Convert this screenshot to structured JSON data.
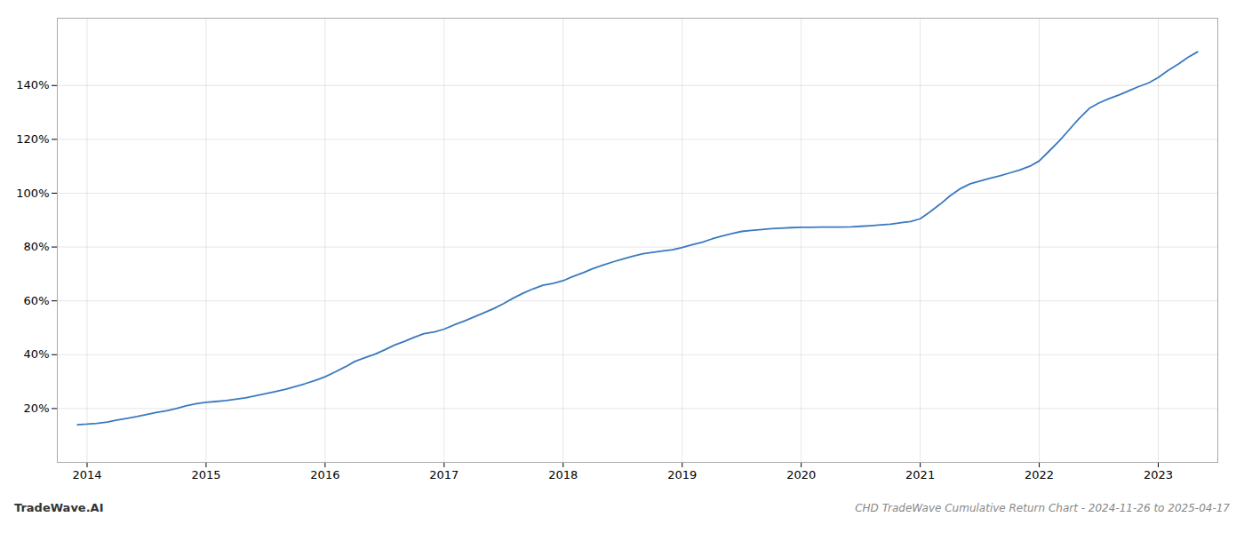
{
  "chart_data": {
    "type": "line",
    "title": "CHD TradeWave Cumulative Return Chart - 2024-11-26 to 2025-04-17",
    "annotations": [
      "TradeWave.AI"
    ],
    "color": "#3a7abf",
    "grid": true,
    "x": [
      2013.92,
      2014.0,
      2014.08,
      2014.17,
      2014.25,
      2014.33,
      2014.42,
      2014.5,
      2014.58,
      2014.67,
      2014.75,
      2014.83,
      2014.92,
      2015.0,
      2015.08,
      2015.17,
      2015.25,
      2015.33,
      2015.42,
      2015.5,
      2015.58,
      2015.67,
      2015.75,
      2015.83,
      2015.92,
      2016.0,
      2016.08,
      2016.17,
      2016.25,
      2016.33,
      2016.42,
      2016.5,
      2016.58,
      2016.67,
      2016.75,
      2016.83,
      2016.92,
      2017.0,
      2017.08,
      2017.17,
      2017.25,
      2017.33,
      2017.42,
      2017.5,
      2017.58,
      2017.67,
      2017.75,
      2017.83,
      2017.92,
      2018.0,
      2018.08,
      2018.17,
      2018.25,
      2018.33,
      2018.42,
      2018.5,
      2018.58,
      2018.67,
      2018.75,
      2018.83,
      2018.92,
      2019.0,
      2019.08,
      2019.17,
      2019.25,
      2019.33,
      2019.42,
      2019.5,
      2019.58,
      2019.67,
      2019.75,
      2019.83,
      2019.92,
      2020.0,
      2020.08,
      2020.17,
      2020.25,
      2020.33,
      2020.42,
      2020.5,
      2020.58,
      2020.67,
      2020.75,
      2020.83,
      2020.92,
      2021.0,
      2021.08,
      2021.17,
      2021.25,
      2021.33,
      2021.42,
      2021.5,
      2021.58,
      2021.67,
      2021.75,
      2021.83,
      2021.92,
      2022.0,
      2022.08,
      2022.17,
      2022.25,
      2022.33,
      2022.42,
      2022.5,
      2022.58,
      2022.67,
      2022.75,
      2022.83,
      2022.92,
      2023.0,
      2023.08,
      2023.17,
      2023.25,
      2023.33
    ],
    "values": [
      14.0,
      14.2,
      14.5,
      15.0,
      15.7,
      16.3,
      17.0,
      17.8,
      18.5,
      19.2,
      20.0,
      21.0,
      21.8,
      22.3,
      22.6,
      23.0,
      23.5,
      24.0,
      24.8,
      25.5,
      26.3,
      27.2,
      28.2,
      29.2,
      30.5,
      31.8,
      33.5,
      35.5,
      37.5,
      38.8,
      40.2,
      41.8,
      43.5,
      45.0,
      46.5,
      47.8,
      48.5,
      49.5,
      51.0,
      52.5,
      54.0,
      55.5,
      57.2,
      59.0,
      61.0,
      63.0,
      64.5,
      65.8,
      66.5,
      67.5,
      69.0,
      70.5,
      72.0,
      73.2,
      74.5,
      75.5,
      76.5,
      77.5,
      78.0,
      78.5,
      79.0,
      79.8,
      80.8,
      81.8,
      83.0,
      84.0,
      85.0,
      85.8,
      86.2,
      86.5,
      86.8,
      87.0,
      87.2,
      87.3,
      87.3,
      87.4,
      87.4,
      87.4,
      87.5,
      87.7,
      87.9,
      88.2,
      88.5,
      89.0,
      89.5,
      90.5,
      93.0,
      96.0,
      99.0,
      101.5,
      103.5,
      104.5,
      105.5,
      106.5,
      107.5,
      108.5,
      110.0,
      112.0,
      115.5,
      119.5,
      123.5,
      127.5,
      131.5,
      133.5,
      135.0,
      136.5,
      138.0,
      139.5,
      141.0,
      143.0,
      145.5,
      148.0,
      150.5,
      152.5
    ],
    "xlim": [
      2013.75,
      2023.5
    ],
    "ylim": [
      0,
      165
    ],
    "xticks": [
      2014,
      2015,
      2016,
      2017,
      2018,
      2019,
      2020,
      2021,
      2022,
      2023
    ],
    "yticks": [
      {
        "value": 20,
        "label": "20%"
      },
      {
        "value": 40,
        "label": "40%"
      },
      {
        "value": 60,
        "label": "60%"
      },
      {
        "value": 80,
        "label": "80%"
      },
      {
        "value": 100,
        "label": "100%"
      },
      {
        "value": 120,
        "label": "120%"
      },
      {
        "value": 140,
        "label": "140%"
      }
    ]
  }
}
